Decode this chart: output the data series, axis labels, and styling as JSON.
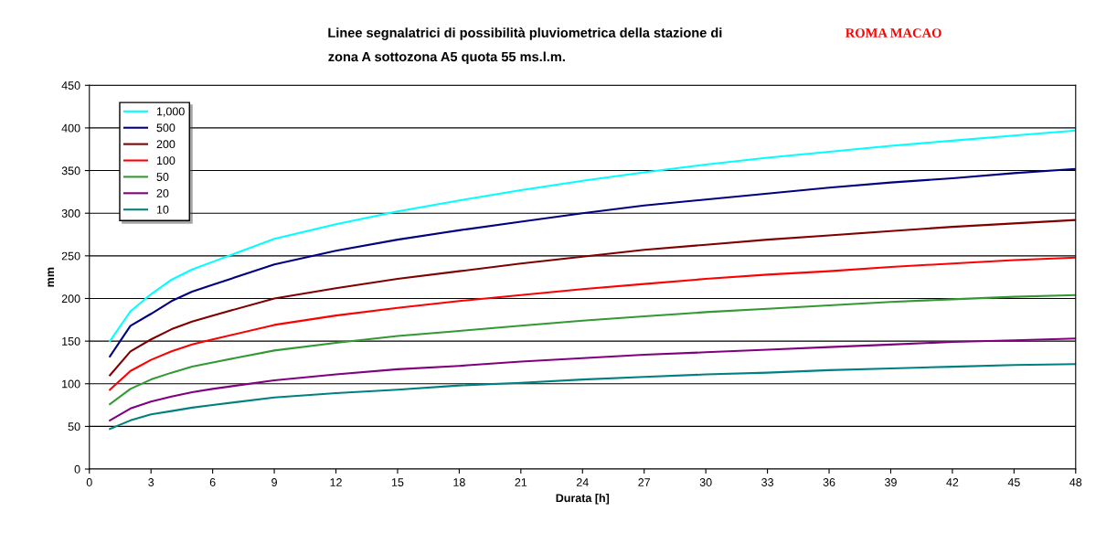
{
  "chart_data": {
    "type": "line",
    "title": "Linee segnalatrici di possibilità pluviometrica della stazione di",
    "subtitle": "zona A sottozona A5 quota 55 ms.l.m.",
    "annotations": [
      "ROMA MACAO"
    ],
    "xlabel": "Durata [h]",
    "ylabel": "mm",
    "x": [
      1,
      2,
      3,
      4,
      5,
      6,
      9,
      12,
      15,
      18,
      21,
      24,
      27,
      30,
      33,
      36,
      39,
      42,
      45,
      48
    ],
    "series": [
      {
        "name": "1,000",
        "color": "#00ffff",
        "values": [
          150,
          185,
          205,
          222,
          234,
          243,
          270,
          287,
          302,
          315,
          327,
          338,
          348,
          357,
          365,
          372,
          379,
          385,
          391,
          397
        ]
      },
      {
        "name": "500",
        "color": "#000080",
        "values": [
          132,
          168,
          182,
          197,
          208,
          216,
          240,
          256,
          269,
          280,
          290,
          300,
          309,
          316,
          323,
          330,
          336,
          341,
          347,
          352
        ]
      },
      {
        "name": "200",
        "color": "#800000",
        "values": [
          110,
          138,
          152,
          164,
          173,
          180,
          200,
          212,
          223,
          232,
          241,
          249,
          257,
          263,
          269,
          274,
          279,
          284,
          288,
          292
        ]
      },
      {
        "name": "100",
        "color": "#ff0000",
        "values": [
          93,
          115,
          128,
          138,
          146,
          152,
          169,
          180,
          189,
          197,
          204,
          211,
          217,
          223,
          228,
          232,
          237,
          241,
          245,
          248
        ]
      },
      {
        "name": "50",
        "color": "#339933",
        "values": [
          76,
          94,
          105,
          113,
          120,
          125,
          139,
          148,
          156,
          162,
          168,
          174,
          179,
          184,
          188,
          192,
          196,
          199,
          202,
          204
        ]
      },
      {
        "name": "20",
        "color": "#800080",
        "values": [
          57,
          71,
          79,
          85,
          90,
          94,
          104,
          111,
          117,
          121,
          126,
          130,
          134,
          137,
          140,
          143,
          146,
          149,
          151,
          153
        ]
      },
      {
        "name": "10",
        "color": "#008080",
        "values": [
          47,
          57,
          64,
          68,
          72,
          75,
          84,
          89,
          93,
          98,
          101,
          105,
          108,
          111,
          113,
          116,
          118,
          120,
          122,
          123
        ]
      }
    ],
    "xlim": [
      0,
      48
    ],
    "xticks": [
      0,
      3,
      6,
      9,
      12,
      15,
      18,
      21,
      24,
      27,
      30,
      33,
      36,
      39,
      42,
      45,
      48
    ],
    "ylim": [
      0,
      450
    ],
    "yticks": [
      0,
      50,
      100,
      150,
      200,
      250,
      300,
      350,
      400,
      450
    ],
    "grid": "y",
    "legend": "top left",
    "marker": "none",
    "line_style": "solid"
  }
}
